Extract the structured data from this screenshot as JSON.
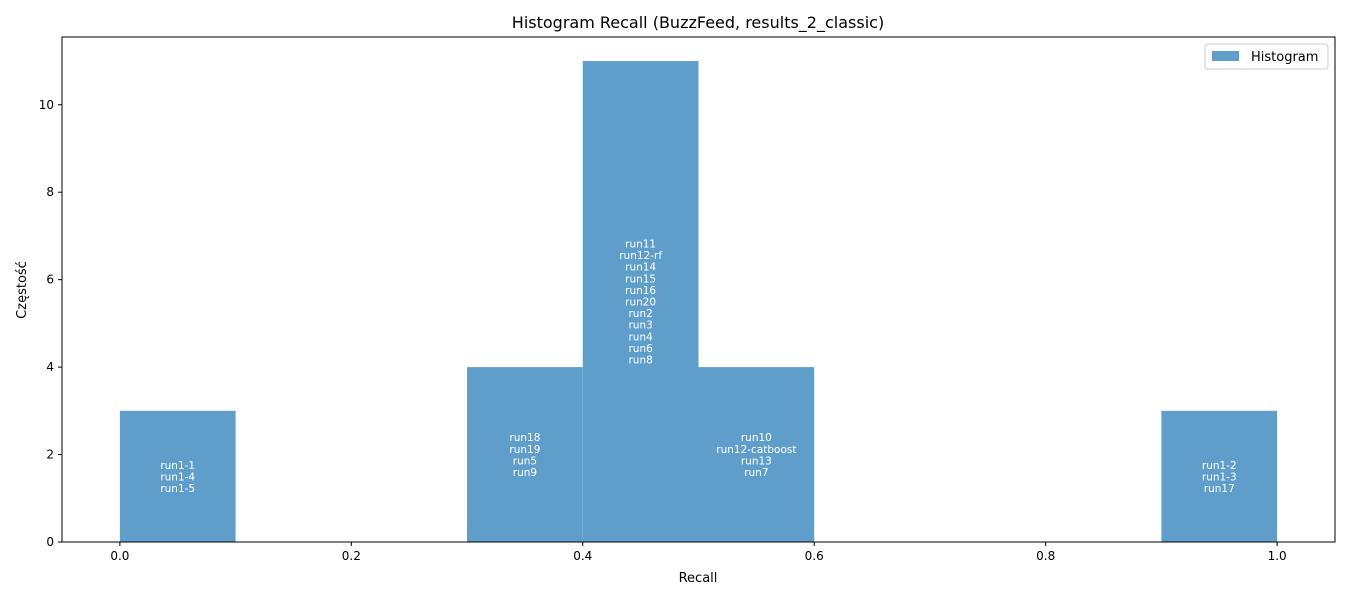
{
  "chart_data": {
    "type": "bar",
    "title": "Histogram Recall (BuzzFeed, results_2_classic)",
    "xlabel": "Recall",
    "ylabel": "Częstość",
    "xlim": [
      -0.05,
      1.05
    ],
    "ylim": [
      0,
      11.55
    ],
    "xticks": [
      "0.0",
      "0.2",
      "0.4",
      "0.6",
      "0.8",
      "1.0"
    ],
    "yticks": [
      "0",
      "2",
      "4",
      "6",
      "8",
      "10"
    ],
    "bin_width": 0.1,
    "color": "#5f9ecb",
    "legend": {
      "label": "Histogram",
      "position": "upper right"
    },
    "bins": [
      {
        "x0": 0.0,
        "x1": 0.1,
        "count": 3,
        "labels": [
          "run1-1",
          "run1-4",
          "run1-5"
        ]
      },
      {
        "x0": 0.3,
        "x1": 0.4,
        "count": 4,
        "labels": [
          "run18",
          "run19",
          "run5",
          "run9"
        ]
      },
      {
        "x0": 0.4,
        "x1": 0.5,
        "count": 11,
        "labels": [
          "run11",
          "run12-rf",
          "run14",
          "run15",
          "run16",
          "run20",
          "run2",
          "run3",
          "run4",
          "run6",
          "run8"
        ]
      },
      {
        "x0": 0.5,
        "x1": 0.6,
        "count": 4,
        "labels": [
          "run10",
          "run12-catboost",
          "run13",
          "run7"
        ]
      },
      {
        "x0": 0.9,
        "x1": 1.0,
        "count": 3,
        "labels": [
          "run1-2",
          "run1-3",
          "run17"
        ]
      }
    ]
  }
}
